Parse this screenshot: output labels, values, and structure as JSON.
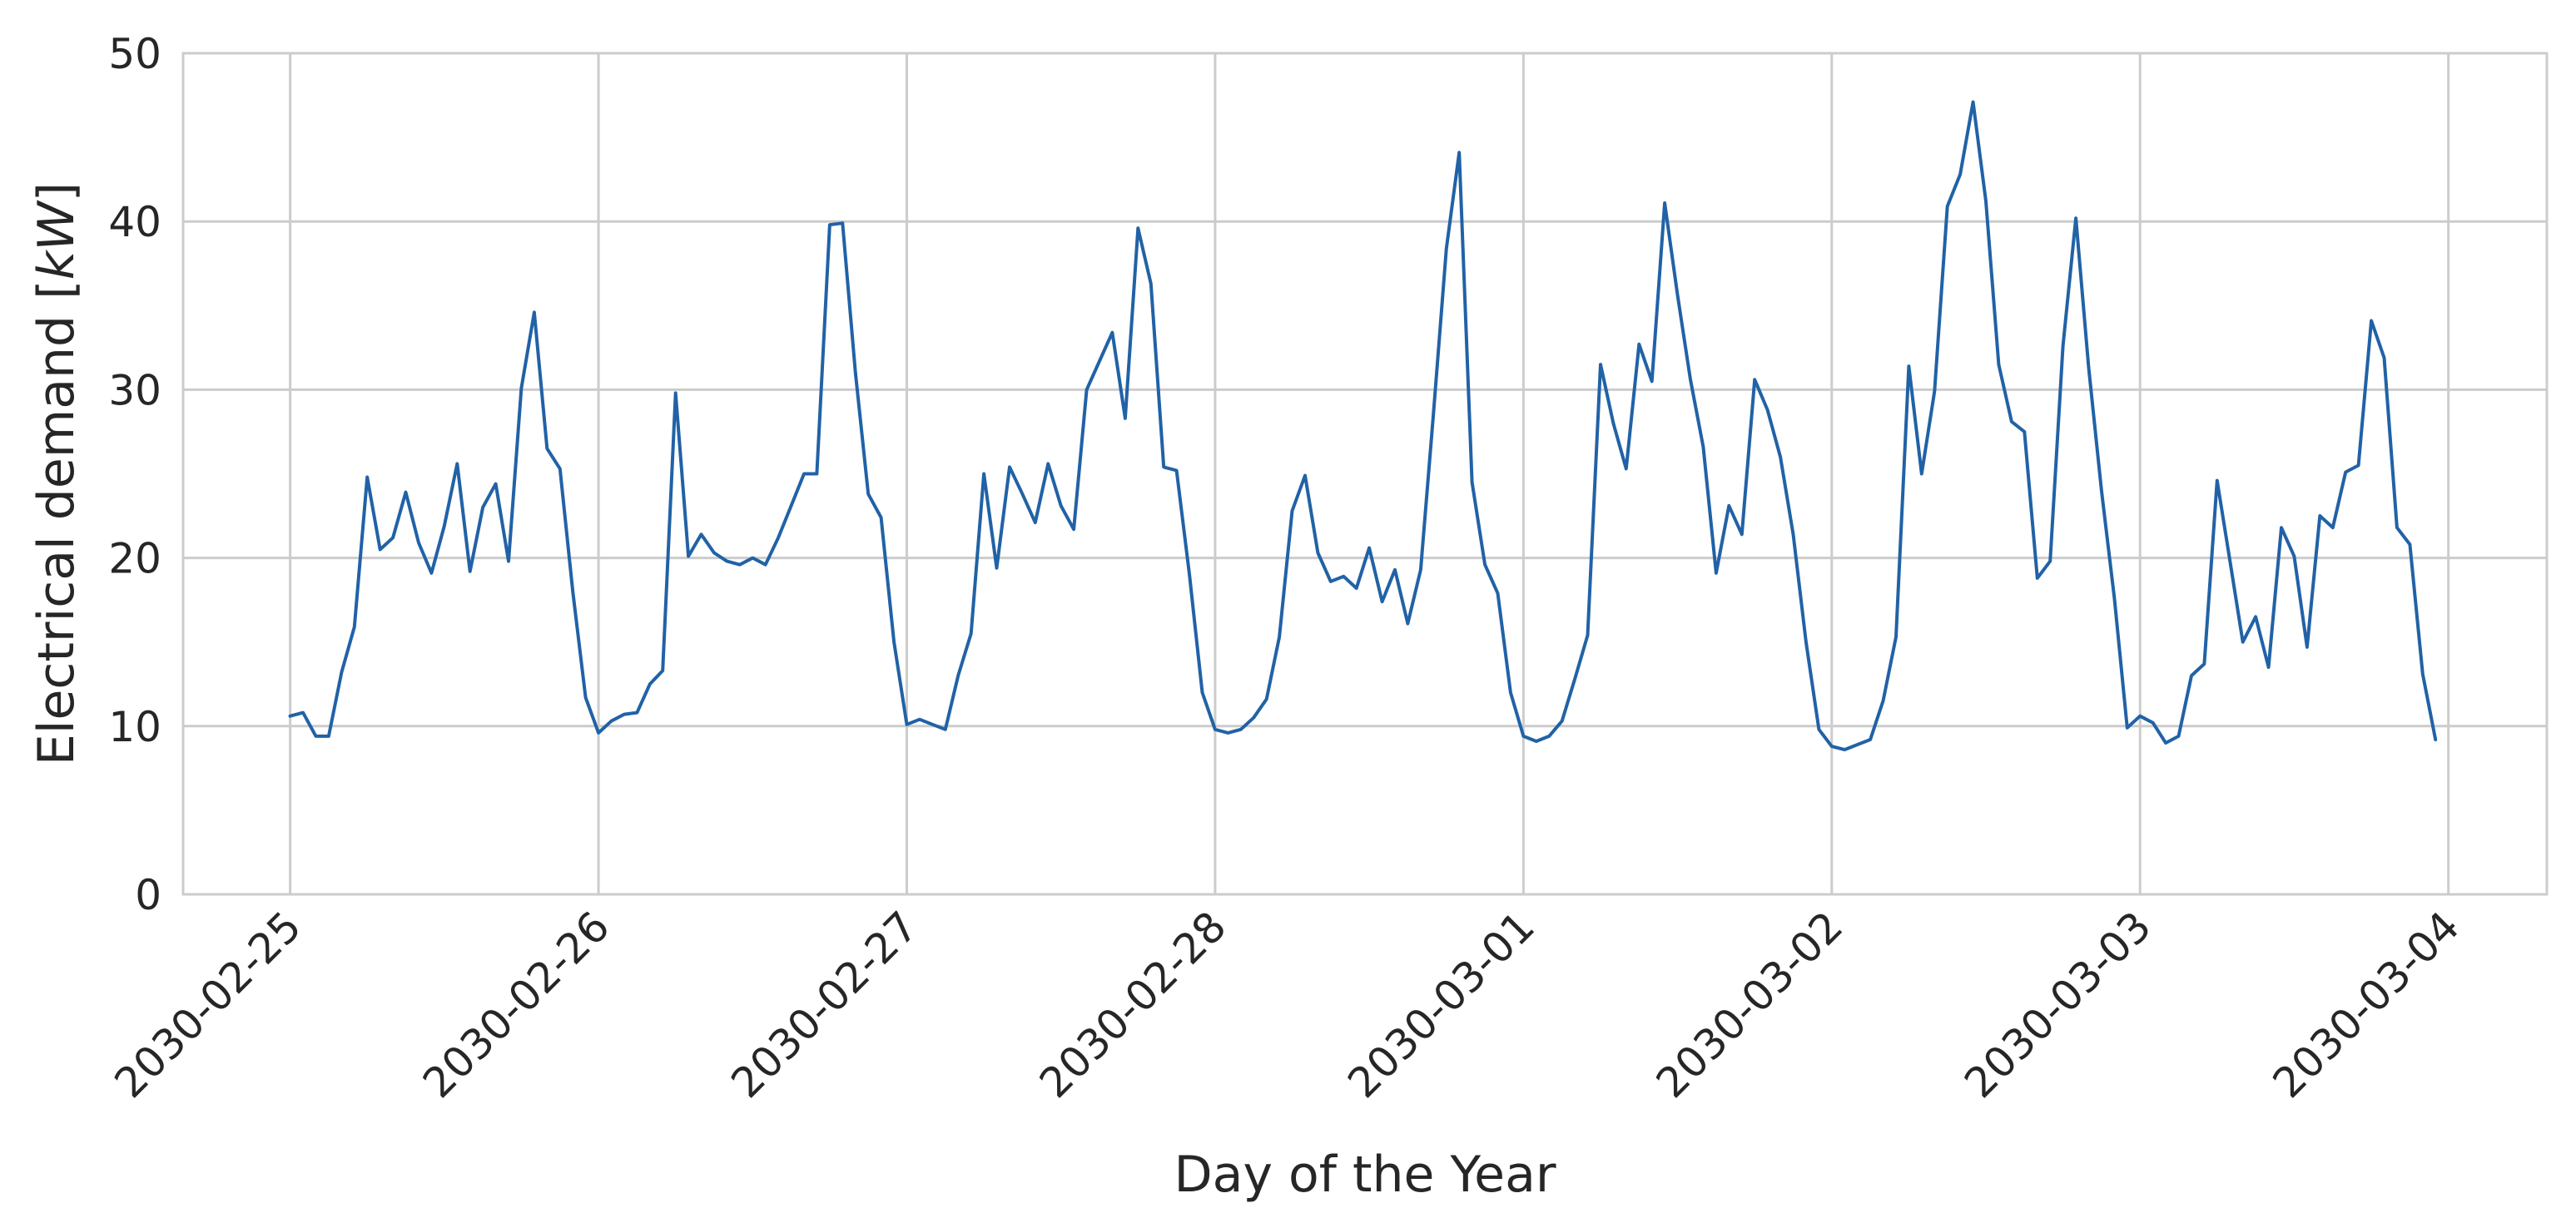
{
  "chart_data": {
    "type": "line",
    "title": "",
    "xlabel": "Day of the Year",
    "ylabel_prefix": "Electrical demand [",
    "ylabel_unit": "kW",
    "ylabel_suffix": "]",
    "ylim": [
      0,
      50
    ],
    "yticks": [
      0,
      10,
      20,
      30,
      40,
      50
    ],
    "xlim": [
      "2030-02-24T15:40",
      "2030-03-04T07:40"
    ],
    "xticks": [
      "2030-02-25",
      "2030-02-26",
      "2030-02-27",
      "2030-02-28",
      "2030-03-01",
      "2030-03-02",
      "2030-03-03",
      "2030-03-04"
    ],
    "grid": true,
    "legend": "none",
    "x_start": "2030-02-25T00:00",
    "x_step": "1 hour",
    "series": [
      {
        "color": "#2162a6",
        "values": [
          10.6,
          10.8,
          9.4,
          9.4,
          13.2,
          15.9,
          24.8,
          20.5,
          21.2,
          23.9,
          20.9,
          19.1,
          21.9,
          25.6,
          19.2,
          23.0,
          24.4,
          19.8,
          30.1,
          34.6,
          26.5,
          25.3,
          18.0,
          11.7,
          9.6,
          10.3,
          10.7,
          10.8,
          12.5,
          13.3,
          29.8,
          20.1,
          21.4,
          20.3,
          19.8,
          19.6,
          20.0,
          19.6,
          21.2,
          23.1,
          25.0,
          25.0,
          39.8,
          39.9,
          31.0,
          23.8,
          22.4,
          15.0,
          10.1,
          10.4,
          10.1,
          9.8,
          13.0,
          15.5,
          25.0,
          19.4,
          25.4,
          23.8,
          22.1,
          25.6,
          23.1,
          21.7,
          30.0,
          31.7,
          33.4,
          28.3,
          39.6,
          36.3,
          25.4,
          25.2,
          19.0,
          12.0,
          9.8,
          9.6,
          9.8,
          10.5,
          11.6,
          15.3,
          22.8,
          24.9,
          20.3,
          18.6,
          18.9,
          18.2,
          20.6,
          17.4,
          19.3,
          16.1,
          19.3,
          28.6,
          38.4,
          44.1,
          24.5,
          19.6,
          17.9,
          12.0,
          9.4,
          9.1,
          9.4,
          10.3,
          12.8,
          15.4,
          31.5,
          28.0,
          25.3,
          32.7,
          30.5,
          41.1,
          35.6,
          30.6,
          26.6,
          19.1,
          23.1,
          21.4,
          30.6,
          28.8,
          26.0,
          21.4,
          15.0,
          9.8,
          8.8,
          8.6,
          8.9,
          9.2,
          11.5,
          15.3,
          31.4,
          25.0,
          29.9,
          40.9,
          42.8,
          47.1,
          41.2,
          31.5,
          28.1,
          27.5,
          18.8,
          19.8,
          32.6,
          40.2,
          31.3,
          24.0,
          17.6,
          9.9,
          10.6,
          10.2,
          9.0,
          9.4,
          13.0,
          13.7,
          24.6,
          19.8,
          15.0,
          16.5,
          13.5,
          21.8,
          20.1,
          14.7,
          22.5,
          21.8,
          25.1,
          25.5,
          34.1,
          31.9,
          21.8,
          20.8,
          13.1,
          9.2
        ]
      }
    ]
  }
}
